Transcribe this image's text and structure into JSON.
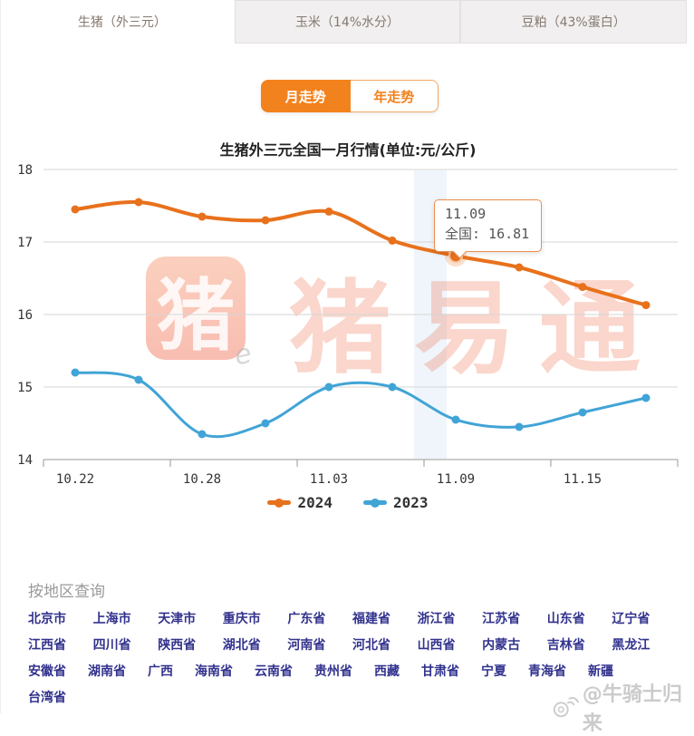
{
  "tabs": [
    {
      "label": "生猪（外三元）",
      "active": true
    },
    {
      "label": "玉米（14%水分）",
      "active": false
    },
    {
      "label": "豆粕（43%蛋白）",
      "active": false
    }
  ],
  "trend_toggle": {
    "month_label": "月走势",
    "year_label": "年走势",
    "active": "月走势"
  },
  "chart_data": {
    "type": "line",
    "title": "生猪外三元全国一月行情(单位:元/公斤)",
    "categories": [
      "10.22",
      "10.25",
      "10.28",
      "10.31",
      "11.03",
      "11.06",
      "11.09",
      "11.12",
      "11.15",
      "11.18"
    ],
    "x_tick_labels": [
      "10.22",
      "10.28",
      "11.03",
      "11.09",
      "11.15"
    ],
    "yticks": [
      18,
      17,
      16,
      15,
      14
    ],
    "ylim": [
      14,
      18
    ],
    "grid": true,
    "legend_position": "bottom",
    "series": [
      {
        "name": "2024",
        "color": "#e8711c",
        "values": [
          17.45,
          17.55,
          17.35,
          17.3,
          17.42,
          17.02,
          16.81,
          16.65,
          16.38,
          16.13
        ]
      },
      {
        "name": "2023",
        "color": "#41a4d6",
        "values": [
          15.2,
          15.1,
          14.35,
          14.5,
          15.0,
          15.0,
          14.55,
          14.45,
          14.65,
          14.85
        ]
      }
    ],
    "highlight": {
      "series": "2024",
      "category": "11.09",
      "value": 16.81
    },
    "tooltip": {
      "line1": "11.09",
      "line2": "全国: 16.81"
    }
  },
  "watermark": {
    "logo_char": "猪",
    "text": "猪易通",
    "doodle": "e"
  },
  "region_section": {
    "title": "按地区查询",
    "rows": [
      [
        "北京市",
        "上海市",
        "天津市",
        "重庆市",
        "广东省",
        "福建省",
        "浙江省",
        "江苏省",
        "山东省",
        "辽宁省"
      ],
      [
        "江西省",
        "四川省",
        "陕西省",
        "湖北省",
        "河南省",
        "河北省",
        "山西省",
        "内蒙古",
        "吉林省",
        "黑龙江"
      ],
      [
        "安徽省",
        "湖南省",
        "广西",
        "海南省",
        "云南省",
        "贵州省",
        "西藏",
        "甘肃省",
        "宁夏",
        "青海省",
        "新疆"
      ],
      [
        "台湾省"
      ]
    ]
  },
  "footer_watermark": {
    "text": "@牛骑士归来"
  }
}
